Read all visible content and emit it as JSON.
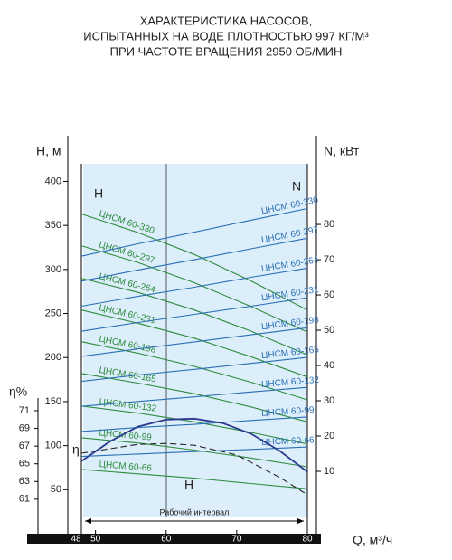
{
  "chart_data": {
    "type": "line",
    "title": [
      "ХАРАКТЕРИСТИКА НАСОСОВ,",
      "ИСПЫТАННЫХ НА ВОДЕ ПЛОТНОСТЬЮ 997 КГ/М³",
      "ПРИ ЧАСТОТЕ ВРАЩЕНИЯ 2950 ОБ/МИН"
    ],
    "ylabel": "H, м",
    "y2label": "N, кВт",
    "y3label": "η%",
    "xlabel": "Q, м³/ч",
    "interval_label": "Рабочий интервал",
    "annotations": [
      "H",
      "N",
      "η",
      "H"
    ],
    "xlim": [
      48,
      80
    ],
    "xticks": [
      48,
      50,
      60,
      70,
      80
    ],
    "ylim": [
      0,
      420
    ],
    "yticks": [
      50,
      100,
      150,
      200,
      250,
      300,
      350,
      400
    ],
    "y2lim": [
      -7.7,
      97.2
    ],
    "y2ticks": [
      10,
      20,
      30,
      40,
      50,
      60,
      70,
      80
    ],
    "y3lim": [
      57.1,
      98.9
    ],
    "y3ticks": [
      61,
      63,
      65,
      67,
      69,
      71
    ],
    "x": [
      48,
      56,
      64,
      72,
      80
    ],
    "series": [
      {
        "name": "ЦНСМ 60-330",
        "axis": "y",
        "color": "#2e8b3e",
        "values": [
          363,
          342,
          317,
          287,
          254
        ]
      },
      {
        "name": "ЦНСМ 60-297",
        "axis": "y",
        "color": "#2e8b3e",
        "values": [
          327,
          308,
          285,
          258,
          229
        ]
      },
      {
        "name": "ЦНСМ 60-264",
        "axis": "y",
        "color": "#2e8b3e",
        "values": [
          290,
          274,
          254,
          230,
          203
        ]
      },
      {
        "name": "ЦНСМ 60-231",
        "axis": "y",
        "color": "#2e8b3e",
        "values": [
          254,
          239,
          222,
          201,
          178
        ]
      },
      {
        "name": "ЦНСМ 60-198",
        "axis": "y",
        "color": "#2e8b3e",
        "values": [
          218,
          205,
          190,
          172,
          152
        ]
      },
      {
        "name": "ЦНСМ 60-165",
        "axis": "y",
        "color": "#2e8b3e",
        "values": [
          182,
          171,
          159,
          144,
          127
        ]
      },
      {
        "name": "ЦНСМ 60-132",
        "axis": "y",
        "color": "#2e8b3e",
        "values": [
          145,
          137,
          127,
          115,
          102
        ]
      },
      {
        "name": "ЦНСМ 60-99",
        "axis": "y",
        "color": "#2e8b3e",
        "values": [
          109,
          103,
          95,
          86,
          76
        ]
      },
      {
        "name": "ЦНСМ 60-66",
        "axis": "y",
        "color": "#2e8b3e",
        "values": [
          73,
          68,
          63,
          57,
          51
        ]
      },
      {
        "name": "ЦНСМ 60-330",
        "axis": "y2",
        "color": "#2a6fb5",
        "values": [
          71,
          74.5,
          77.8,
          81.2,
          84.5
        ]
      },
      {
        "name": "ЦНСМ 60-297",
        "axis": "y2",
        "color": "#2a6fb5",
        "values": [
          63.9,
          67.1,
          70.0,
          73.1,
          76.1
        ]
      },
      {
        "name": "ЦНСМ 60-264",
        "axis": "y2",
        "color": "#2a6fb5",
        "values": [
          56.8,
          59.6,
          62.2,
          65.0,
          67.6
        ]
      },
      {
        "name": "ЦНСМ 60-231",
        "axis": "y2",
        "color": "#2a6fb5",
        "values": [
          49.7,
          52.2,
          54.5,
          56.8,
          59.2
        ]
      },
      {
        "name": "ЦНСМ 60-198",
        "axis": "y2",
        "color": "#2a6fb5",
        "values": [
          42.6,
          44.7,
          46.7,
          48.7,
          50.7
        ]
      },
      {
        "name": "ЦНСМ 60-165",
        "axis": "y2",
        "color": "#2a6fb5",
        "values": [
          35.5,
          37.3,
          38.9,
          40.6,
          42.3
        ]
      },
      {
        "name": "ЦНСМ 60-132",
        "axis": "y2",
        "color": "#2a6fb5",
        "values": [
          28.4,
          29.8,
          31.1,
          32.5,
          33.8
        ]
      },
      {
        "name": "ЦНСМ 60-99",
        "axis": "y2",
        "color": "#2a6fb5",
        "values": [
          21.3,
          22.4,
          23.3,
          24.4,
          25.4
        ]
      },
      {
        "name": "ЦНСМ 60-66",
        "axis": "y2",
        "color": "#2a6fb5",
        "values": [
          14.2,
          14.9,
          15.6,
          16.2,
          16.9
        ]
      },
      {
        "axis": "y3",
        "color": "#2b3a8f",
        "x": [
          48,
          52,
          56,
          60,
          64,
          68,
          72,
          76,
          80
        ],
        "values": [
          65.3,
          67.5,
          69.2,
          70,
          70.1,
          69.6,
          68.4,
          66.5,
          64.1
        ]
      },
      {
        "axis": "y3",
        "color": "#222222",
        "dash": true,
        "x": [
          48,
          56,
          60,
          64,
          70,
          76,
          80
        ],
        "values": [
          66.2,
          67.2,
          67.3,
          67.1,
          66,
          63.5,
          61.5
        ]
      }
    ]
  }
}
